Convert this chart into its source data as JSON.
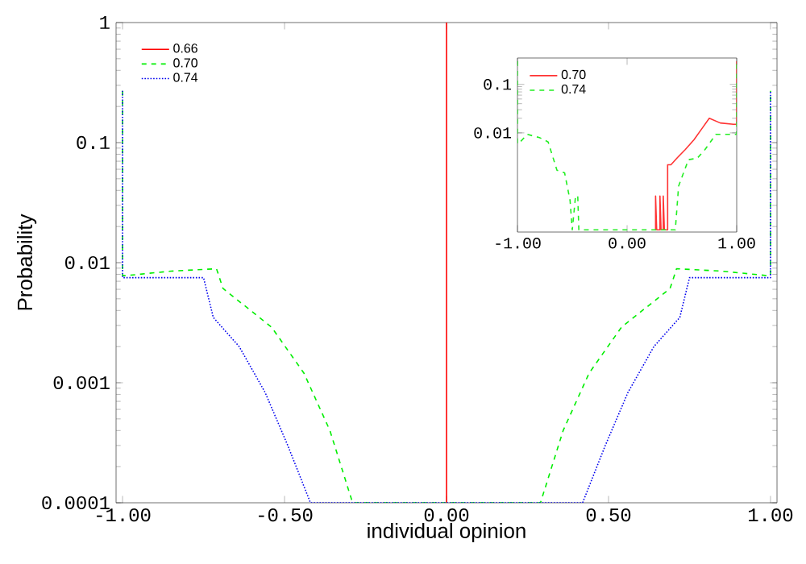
{
  "chart_data": [
    {
      "type": "line",
      "xlabel": "individual opinion",
      "ylabel": "Probability",
      "log": "y",
      "legend": "top left",
      "xlim": [
        -1.02,
        1.02
      ],
      "ylim": [
        0.0001,
        1
      ],
      "xticks": [
        {
          "value": -1,
          "label": "-1.00"
        },
        {
          "value": -0.5,
          "label": "-0.50"
        },
        {
          "value": 0,
          "label": "0.00"
        },
        {
          "value": 0.5,
          "label": "0.50"
        },
        {
          "value": 1,
          "label": "1.00"
        }
      ],
      "yticks": [
        0.0001,
        0.001,
        0.01,
        0.1,
        1
      ],
      "series": [
        {
          "name": "0.66",
          "color": "#ff0000",
          "line_style": "solid",
          "x": [
            0,
            0
          ],
          "values": [
            0.0001,
            1
          ]
        },
        {
          "name": "0.70",
          "color": "#00ee00",
          "line_style": "dashed",
          "x": [
            -1.0,
            -1.0,
            -0.99,
            -0.85,
            -0.71,
            -0.69,
            -0.54,
            -0.44,
            -0.36,
            -0.29,
            0.29,
            0.36,
            0.44,
            0.54,
            0.69,
            0.71,
            0.85,
            0.99,
            1.0,
            1.0
          ],
          "values": [
            0.27,
            0.0078,
            0.0078,
            0.0085,
            0.0089,
            0.0061,
            0.0029,
            0.0012,
            0.0004,
            0.0001,
            0.0001,
            0.0004,
            0.0012,
            0.0029,
            0.0061,
            0.0089,
            0.0085,
            0.0078,
            0.0078,
            0.27
          ]
        },
        {
          "name": "0.74",
          "color": "#0000ee",
          "line_style": "dotted",
          "x": [
            -1.0,
            -1.0,
            -0.99,
            -0.75,
            -0.72,
            -0.64,
            -0.56,
            -0.49,
            -0.42,
            0.42,
            0.49,
            0.56,
            0.64,
            0.72,
            0.75,
            0.99,
            1.0,
            1.0
          ],
          "values": [
            0.27,
            0.0075,
            0.0075,
            0.0075,
            0.0035,
            0.002,
            0.00083,
            0.0003,
            0.0001,
            0.0001,
            0.0003,
            0.00083,
            0.002,
            0.0035,
            0.0075,
            0.0075,
            0.0075,
            0.27
          ]
        }
      ]
    },
    {
      "type": "line",
      "log": "y",
      "legend": "top left",
      "xlim": [
        -1,
        1
      ],
      "ylim": [
        9e-05,
        0.35
      ],
      "xticks": [
        {
          "value": -1,
          "label": "-1.00"
        },
        {
          "value": 0,
          "label": "0.00"
        },
        {
          "value": 1,
          "label": "1.00"
        }
      ],
      "yticks": [
        0.01,
        0.1
      ],
      "series": [
        {
          "name": "0.70",
          "color": "#ff3333",
          "line_style": "solid",
          "x": [
            0.26,
            0.26,
            0.27,
            0.3,
            0.3,
            0.31,
            0.33,
            0.33,
            0.34,
            0.37,
            0.37,
            0.4,
            0.46,
            0.53,
            0.61,
            0.68,
            0.75,
            0.85,
            0.97,
            1.0,
            1.0
          ],
          "values": [
            0.0001,
            0.0005,
            0.0001,
            0.0001,
            0.0005,
            0.0001,
            0.0001,
            0.0005,
            0.0001,
            0.0001,
            0.0022,
            0.0022,
            0.0031,
            0.0045,
            0.0072,
            0.012,
            0.02,
            0.016,
            0.015,
            0.015,
            0.3
          ]
        },
        {
          "name": "0.74",
          "color": "#22ee22",
          "line_style": "dashed",
          "x": [
            -1.0,
            -1.0,
            -0.99,
            -0.91,
            -0.8,
            -0.72,
            -0.64,
            -0.57,
            -0.52,
            -0.5,
            -0.47,
            -0.45,
            -0.44,
            0.44,
            0.47,
            0.56,
            0.64,
            0.71,
            0.81,
            0.96,
            1.0,
            1.0
          ],
          "values": [
            0.3,
            0.006,
            0.006,
            0.0093,
            0.008,
            0.0065,
            0.0017,
            0.0015,
            0.0004,
            0.0001,
            0.0005,
            0.0005,
            0.0001,
            0.0001,
            0.0008,
            0.0028,
            0.003,
            0.0045,
            0.0093,
            0.0093,
            0.0093,
            0.3
          ]
        }
      ]
    }
  ]
}
